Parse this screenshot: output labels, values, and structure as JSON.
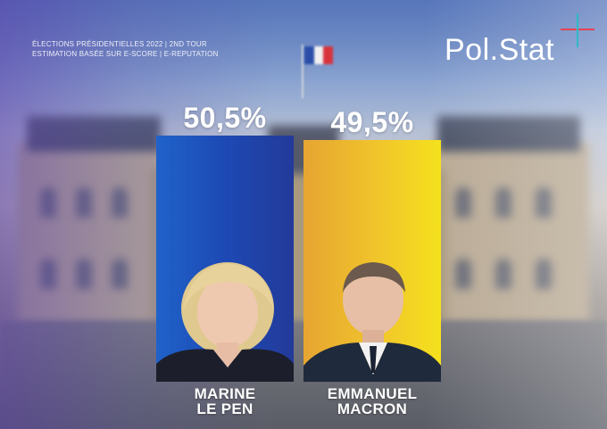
{
  "header": {
    "line1": "ÉLECTIONS PRÉSIDENTIELLES 2022 | 2ND TOUR",
    "line2": "ESTIMATION BASÉE SUR E-SCORE | E-REPUTATION",
    "brand": "Pol.Stat"
  },
  "colors": {
    "lepen": "#1d49b4",
    "macron": "#f0c22b",
    "accent_red": "#e8424f",
    "accent_teal": "#2fb9c5"
  },
  "chart_data": {
    "type": "bar",
    "title": "ÉLECTIONS PRÉSIDENTIELLES 2022 | 2ND TOUR",
    "subtitle": "ESTIMATION BASÉE SUR E-SCORE | E-REPUTATION",
    "categories": [
      "MARINE LE PEN",
      "EMMANUEL MACRON"
    ],
    "values": [
      50.5,
      49.5
    ],
    "labels": [
      "50,5%",
      "49,5%"
    ],
    "names": [
      [
        "MARINE",
        "LE PEN"
      ],
      [
        "EMMANUEL",
        "MACRON"
      ]
    ],
    "ylim": [
      0,
      50.5
    ],
    "grid": false,
    "legend": "none"
  }
}
